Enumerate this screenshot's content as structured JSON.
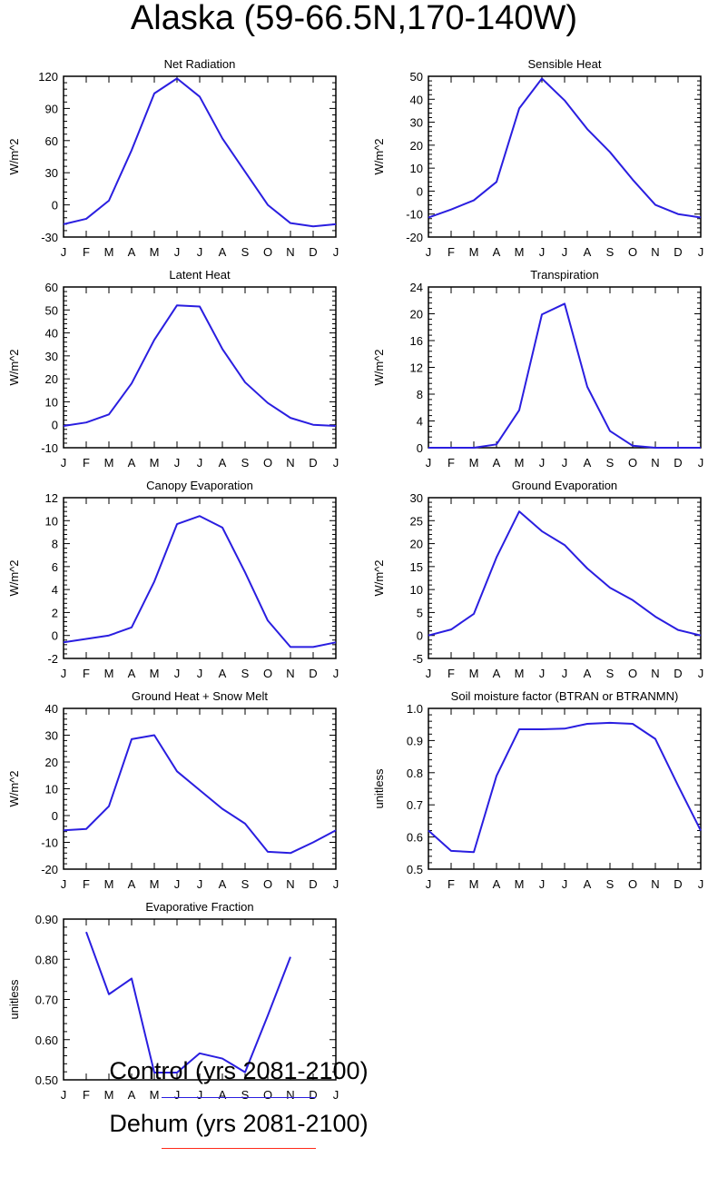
{
  "title": "Alaska (59-66.5N,170-140W)",
  "months": [
    "J",
    "F",
    "M",
    "A",
    "M",
    "J",
    "J",
    "A",
    "S",
    "O",
    "N",
    "D",
    "J"
  ],
  "colors": {
    "control": "#2a1ee0",
    "dehum": "#ff2a1a",
    "axis": "#000000"
  },
  "legend": {
    "control_label": "Control (yrs 2081-2100)",
    "dehum_label": "Dehum (yrs 2081-2100)"
  },
  "chart_data": [
    {
      "type": "line",
      "title": "Net Radiation",
      "ylabel": "W/m^2",
      "ylim": [
        -30,
        120
      ],
      "yticks": [
        -30,
        0,
        30,
        60,
        90,
        120
      ],
      "ytick_labels": [
        "-30",
        "0",
        "30",
        "60",
        "90",
        "120"
      ],
      "series": [
        {
          "name": "Control",
          "values": [
            -18,
            -13,
            4,
            51,
            104,
            118,
            101,
            62,
            31,
            0,
            -17,
            -20,
            -18
          ]
        }
      ]
    },
    {
      "type": "line",
      "title": "Sensible Heat",
      "ylabel": "W/m^2",
      "ylim": [
        -20,
        50
      ],
      "yticks": [
        -20,
        -10,
        0,
        10,
        20,
        30,
        40,
        50
      ],
      "ytick_labels": [
        "-20",
        "-10",
        "0",
        "10",
        "20",
        "30",
        "40",
        "50"
      ],
      "series": [
        {
          "name": "Control",
          "values": [
            -11.5,
            -8,
            -4,
            4,
            36,
            49,
            39.5,
            27,
            17,
            5,
            -6,
            -10,
            -11.5
          ]
        }
      ]
    },
    {
      "type": "line",
      "title": "Latent Heat",
      "ylabel": "W/m^2",
      "ylim": [
        -10,
        60
      ],
      "yticks": [
        -10,
        0,
        10,
        20,
        30,
        40,
        50,
        60
      ],
      "ytick_labels": [
        "-10",
        "0",
        "10",
        "20",
        "30",
        "40",
        "50",
        "60"
      ],
      "series": [
        {
          "name": "Control",
          "values": [
            -0.5,
            1,
            4.5,
            18,
            37,
            52,
            51.5,
            33,
            18.5,
            9.5,
            3,
            0,
            -0.5
          ]
        }
      ]
    },
    {
      "type": "line",
      "title": "Transpiration",
      "ylabel": "W/m^2",
      "ylim": [
        0,
        24
      ],
      "yticks": [
        0,
        4,
        8,
        12,
        16,
        20,
        24
      ],
      "ytick_labels": [
        "0",
        "4",
        "8",
        "12",
        "16",
        "20",
        "24"
      ],
      "series": [
        {
          "name": "Control",
          "values": [
            0,
            0,
            0,
            0.5,
            5.6,
            19.9,
            21.5,
            9.1,
            2.5,
            0.3,
            0,
            0,
            0
          ]
        }
      ]
    },
    {
      "type": "line",
      "title": "Canopy Evaporation",
      "ylabel": "W/m^2",
      "ylim": [
        -2,
        12
      ],
      "yticks": [
        -2,
        0,
        2,
        4,
        6,
        8,
        10,
        12
      ],
      "ytick_labels": [
        "-2",
        "0",
        "2",
        "4",
        "6",
        "8",
        "10",
        "12"
      ],
      "series": [
        {
          "name": "Control",
          "values": [
            -0.6,
            -0.3,
            0,
            0.7,
            4.7,
            9.7,
            10.4,
            9.4,
            5.5,
            1.3,
            -1,
            -1,
            -0.6
          ]
        }
      ]
    },
    {
      "type": "line",
      "title": "Ground Evaporation",
      "ylabel": "W/m^2",
      "ylim": [
        -5,
        30
      ],
      "yticks": [
        -5,
        0,
        5,
        10,
        15,
        20,
        25,
        30
      ],
      "ytick_labels": [
        "-5",
        "0",
        "5",
        "10",
        "15",
        "20",
        "25",
        "30"
      ],
      "series": [
        {
          "name": "Control",
          "values": [
            0,
            1.3,
            4.7,
            17,
            27,
            22.7,
            19.7,
            14.6,
            10.4,
            7.7,
            4.1,
            1.2,
            0
          ]
        }
      ]
    },
    {
      "type": "line",
      "title": "Ground Heat + Snow Melt",
      "ylabel": "W/m^2",
      "ylim": [
        -20,
        40
      ],
      "yticks": [
        -20,
        -10,
        0,
        10,
        20,
        30,
        40
      ],
      "ytick_labels": [
        "-20",
        "-10",
        "0",
        "10",
        "20",
        "30",
        "40"
      ],
      "series": [
        {
          "name": "Control",
          "values": [
            -5.5,
            -5,
            3.5,
            28.5,
            30,
            16.5,
            9.5,
            2.5,
            -3,
            -13.5,
            -14,
            -10,
            -5.5
          ]
        }
      ]
    },
    {
      "type": "line",
      "title": "Soil moisture factor (BTRAN or BTRANMN)",
      "ylabel": "unitless",
      "ylim": [
        0.5,
        1.0
      ],
      "yticks": [
        0.5,
        0.6,
        0.7,
        0.8,
        0.9,
        1.0
      ],
      "ytick_labels": [
        "0.5",
        "0.6",
        "0.7",
        "0.8",
        "0.9",
        "1.0"
      ],
      "series": [
        {
          "name": "Control",
          "values": [
            0.62,
            0.557,
            0.553,
            0.79,
            0.935,
            0.935,
            0.937,
            0.952,
            0.955,
            0.952,
            0.905,
            0.76,
            0.62
          ]
        }
      ]
    },
    {
      "type": "line",
      "title": "Evaporative Fraction",
      "ylabel": "unitless",
      "ylim": [
        0.5,
        0.9
      ],
      "yticks": [
        0.5,
        0.6,
        0.7,
        0.8,
        0.9
      ],
      "ytick_labels": [
        "0.50",
        "0.60",
        "0.70",
        "0.80",
        "0.90"
      ],
      "series": [
        {
          "name": "Control",
          "values": [
            null,
            0.868,
            0.713,
            0.752,
            0.518,
            0.518,
            0.566,
            0.553,
            0.519,
            0.66,
            0.806,
            null,
            null
          ]
        }
      ]
    }
  ]
}
